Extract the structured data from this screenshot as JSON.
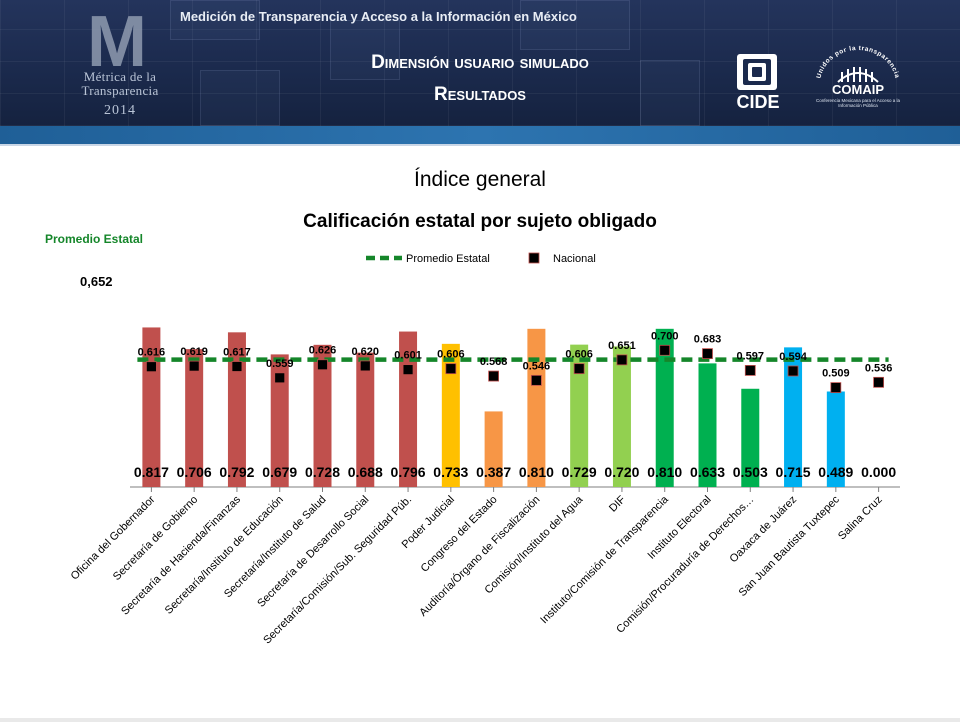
{
  "header": {
    "top_line": "Medición de Transparencia y Acceso a la Información en México",
    "title_line1": "Dimensión usuario simulado",
    "title_line2": "Resultados",
    "logo_letter": "M",
    "logo_text": "Métrica de la Transparencia",
    "logo_year": "2014",
    "cide_label": "CIDE",
    "comaip_label": "COMAIP",
    "comaip_arc_text": "Unidos por la transparencia",
    "comaip_subtitle": "Conferencia Mexicana para el Acceso a la Información Pública",
    "colors": {
      "banner": "#1b2a4d",
      "stripe": "#2d74b0"
    }
  },
  "section_title": "Índice general",
  "promedio": {
    "label": "Promedio Estatal",
    "value": "0,652"
  },
  "chart_data": {
    "type": "bar",
    "title": "Calificación estatal por sujeto obligado",
    "legend": {
      "placement": "top-center",
      "items": [
        {
          "label": "Promedio Estatal",
          "kind": "dashed-line",
          "color": "#15862a"
        },
        {
          "label": "Nacional",
          "kind": "marker",
          "color": "#000000"
        }
      ]
    },
    "ylim": [
      0,
      0.85
    ],
    "promedio_estatal": 0.652,
    "categories": [
      "Oficina del Gobernador",
      "Secretaría de Gobierno",
      "Secretaría de Hacienda/Finanzas",
      "Secretaría/Instituto de Educación",
      "Secretaría/Instituto de Salud",
      "Secretaría de Desarrollo Social",
      "Secretaría/Comisión/Sub. Seguridad Púb.",
      "Poder Judicial",
      "Congreso del Estado",
      "Auditoría/Órgano de Fiscalización",
      "Comisión/Instituto del Agua",
      "DIF",
      "Instituto/Comisión de Transparencia",
      "Instituto Electoral",
      "Comisión/Procuraduría de Derechos…",
      "Oaxaca de Juárez",
      "San Juan Bautista Tuxtepec",
      "Salina Cruz"
    ],
    "values": [
      0.817,
      0.706,
      0.792,
      0.679,
      0.728,
      0.688,
      0.796,
      0.733,
      0.387,
      0.81,
      0.729,
      0.72,
      0.81,
      0.633,
      0.503,
      0.715,
      0.489,
      0.0
    ],
    "value_labels": [
      "0.817",
      "0.706",
      "0.792",
      "0.679",
      "0.728",
      "0.688",
      "0.796",
      "0.733",
      "0.387",
      "0.810",
      "0.729",
      "0.720",
      "0.810",
      "0.633",
      "0.503",
      "0.715",
      "0.489",
      "0.000"
    ],
    "nacional": [
      0.616,
      0.619,
      0.617,
      0.559,
      0.626,
      0.62,
      0.601,
      0.606,
      0.568,
      0.546,
      0.606,
      0.651,
      0.7,
      0.683,
      0.597,
      0.594,
      0.509,
      0.536
    ],
    "nacional_labels": [
      "0.616",
      "0.619",
      "0.617",
      "0.559",
      "0.626",
      "0.620",
      "0.601",
      "0.606",
      "0.568",
      "0.546",
      "0.606",
      "0.651",
      "0.700",
      "0.683",
      "0.597",
      "0.594",
      "0.509",
      "0.536"
    ],
    "bar_colors": [
      "#c0504d",
      "#c0504d",
      "#c0504d",
      "#c0504d",
      "#c0504d",
      "#c0504d",
      "#c0504d",
      "#ffc000",
      "#f79646",
      "#f79646",
      "#92d050",
      "#92d050",
      "#00b050",
      "#00b050",
      "#00b050",
      "#00b0f0",
      "#00b0f0",
      "#00b0f0"
    ]
  }
}
